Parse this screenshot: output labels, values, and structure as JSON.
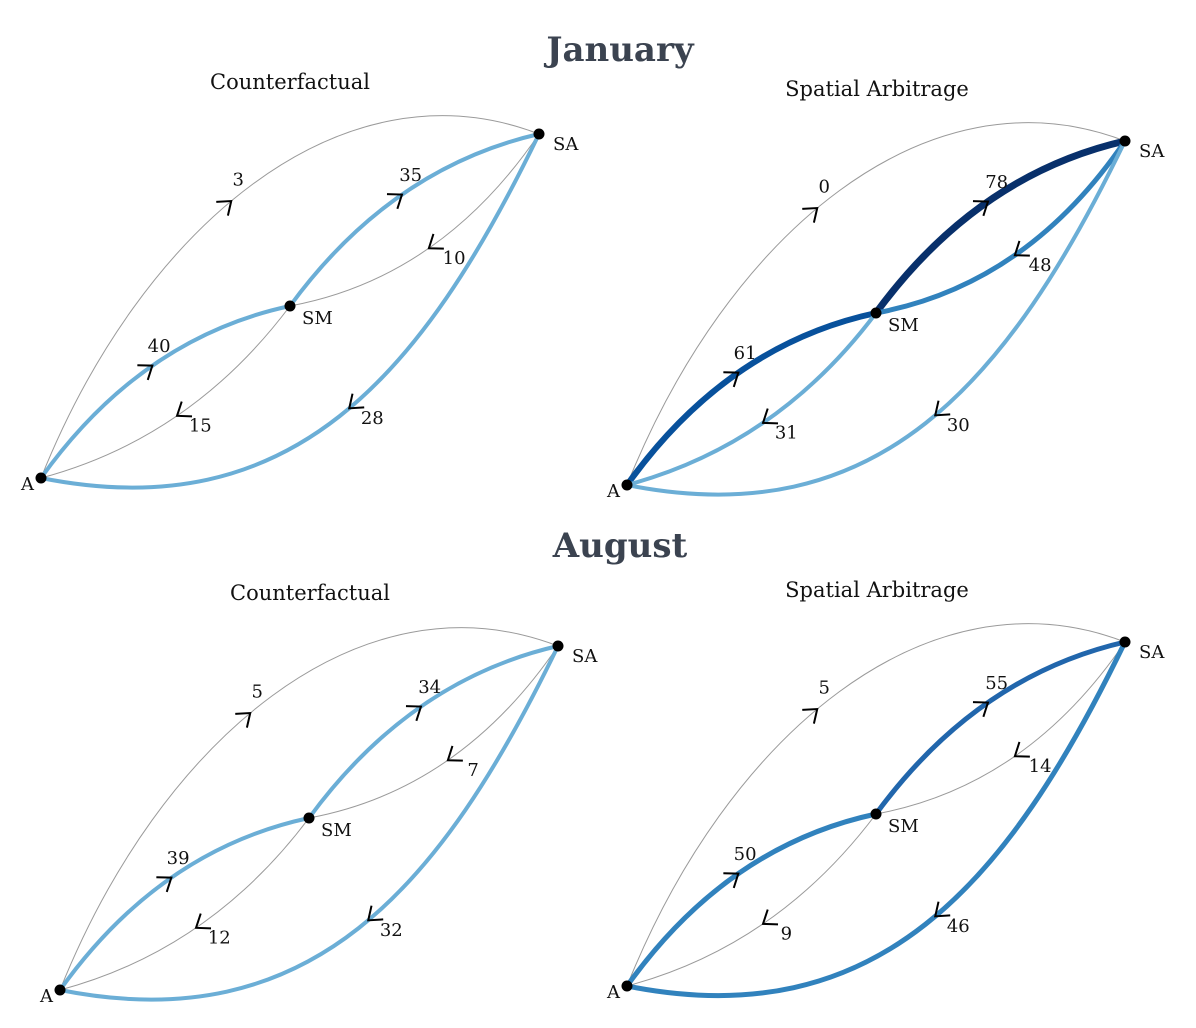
{
  "months": [
    {
      "title": "January",
      "panels": [
        {
          "title": "Counterfactual",
          "flows": {
            "A_SA": 3,
            "A_SM": 40,
            "SM_A": 15,
            "SM_SA": 35,
            "SA_SM": 10,
            "SA_A": 28
          }
        },
        {
          "title": "Spatial Arbitrage",
          "flows": {
            "A_SA": 0,
            "A_SM": 61,
            "SM_A": 31,
            "SM_SA": 78,
            "SA_SM": 48,
            "SA_A": 30
          }
        }
      ]
    },
    {
      "title": "August",
      "panels": [
        {
          "title": "Counterfactual",
          "flows": {
            "A_SA": 5,
            "A_SM": 39,
            "SM_A": 12,
            "SM_SA": 34,
            "SA_SM": 7,
            "SA_A": 32
          }
        },
        {
          "title": "Spatial Arbitrage",
          "flows": {
            "A_SA": 5,
            "A_SM": 50,
            "SM_A": 9,
            "SM_SA": 55,
            "SA_SM": 14,
            "SA_A": 46
          }
        }
      ]
    }
  ],
  "nodes": {
    "A": "A",
    "SM": "SM",
    "SA": "SA"
  }
}
